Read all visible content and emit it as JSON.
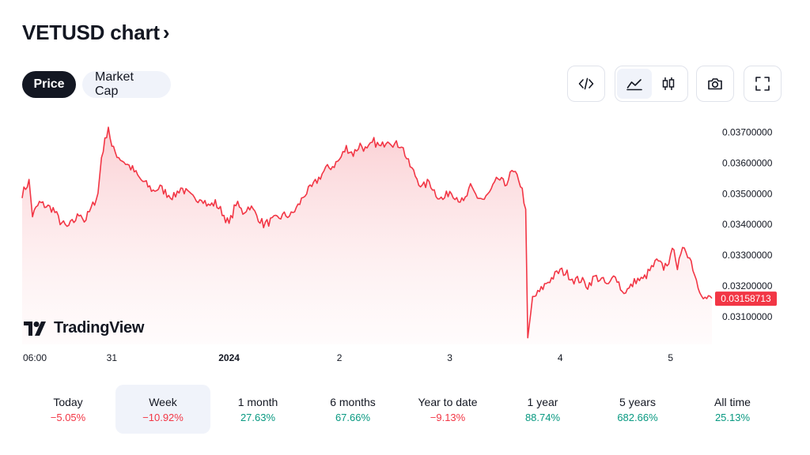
{
  "header": {
    "title": "VETUSD chart",
    "chevron": "›"
  },
  "tabs": [
    {
      "label": "Price",
      "active": true
    },
    {
      "label": "Market Cap",
      "active": false
    }
  ],
  "toolbar": {
    "embed_icon": "code-icon",
    "area_icon": "area-chart-icon",
    "candle_icon": "candlestick-icon",
    "snapshot_icon": "camera-icon",
    "fullscreen_icon": "fullscreen-icon"
  },
  "branding": {
    "logo_text": "TradingView"
  },
  "periods": [
    {
      "label": "Today",
      "value": "−5.05%",
      "trend": "neg",
      "selected": false
    },
    {
      "label": "Week",
      "value": "−10.92%",
      "trend": "neg",
      "selected": true
    },
    {
      "label": "1 month",
      "value": "27.63%",
      "trend": "pos",
      "selected": false
    },
    {
      "label": "6 months",
      "value": "67.66%",
      "trend": "pos",
      "selected": false
    },
    {
      "label": "Year to date",
      "value": "−9.13%",
      "trend": "neg",
      "selected": false
    },
    {
      "label": "1 year",
      "value": "88.74%",
      "trend": "pos",
      "selected": false
    },
    {
      "label": "5 years",
      "value": "682.66%",
      "trend": "pos",
      "selected": false
    },
    {
      "label": "All time",
      "value": "25.13%",
      "trend": "pos",
      "selected": false
    }
  ],
  "colors": {
    "line": "#f23645",
    "area_top": "#f7a9b0",
    "area_bottom": "#fff1f2",
    "label_bg": "#f23645"
  },
  "chart_data": {
    "type": "area",
    "x_ticks": [
      {
        "label": "06:00",
        "t": 0.0,
        "bold": false
      },
      {
        "label": "31",
        "t": 0.13,
        "bold": false
      },
      {
        "label": "2024",
        "t": 0.3,
        "bold": true
      },
      {
        "label": "2",
        "t": 0.46,
        "bold": false
      },
      {
        "label": "3",
        "t": 0.62,
        "bold": false
      },
      {
        "label": "4",
        "t": 0.78,
        "bold": false
      },
      {
        "label": "5",
        "t": 0.94,
        "bold": false
      }
    ],
    "y_ticks": [
      "0.03700000",
      "0.03600000",
      "0.03500000",
      "0.03400000",
      "0.03300000",
      "0.03200000",
      "0.03100000"
    ],
    "ylim": [
      0.0301,
      0.0375
    ],
    "current_price": 0.03158713,
    "current_price_label": "0.03158713",
    "series": [
      {
        "values": [
          [
            0.0,
            0.035
          ],
          [
            0.01,
            0.0354
          ],
          [
            0.015,
            0.0343
          ],
          [
            0.025,
            0.0347
          ],
          [
            0.035,
            0.0346
          ],
          [
            0.045,
            0.0345
          ],
          [
            0.055,
            0.0341
          ],
          [
            0.065,
            0.0339
          ],
          [
            0.075,
            0.0341
          ],
          [
            0.085,
            0.0344
          ],
          [
            0.09,
            0.0341
          ],
          [
            0.1,
            0.0345
          ],
          [
            0.11,
            0.035
          ],
          [
            0.115,
            0.0362
          ],
          [
            0.12,
            0.0367
          ],
          [
            0.125,
            0.0372
          ],
          [
            0.13,
            0.0365
          ],
          [
            0.14,
            0.0362
          ],
          [
            0.15,
            0.036
          ],
          [
            0.16,
            0.0358
          ],
          [
            0.17,
            0.0355
          ],
          [
            0.18,
            0.0353
          ],
          [
            0.19,
            0.0351
          ],
          [
            0.2,
            0.0352
          ],
          [
            0.21,
            0.035
          ],
          [
            0.22,
            0.0349
          ],
          [
            0.23,
            0.0352
          ],
          [
            0.24,
            0.035
          ],
          [
            0.25,
            0.0348
          ],
          [
            0.26,
            0.0349
          ],
          [
            0.27,
            0.0346
          ],
          [
            0.28,
            0.0347
          ],
          [
            0.29,
            0.0344
          ],
          [
            0.3,
            0.034
          ],
          [
            0.31,
            0.0347
          ],
          [
            0.32,
            0.0344
          ],
          [
            0.33,
            0.0346
          ],
          [
            0.34,
            0.0343
          ],
          [
            0.35,
            0.034
          ],
          [
            0.36,
            0.0341
          ],
          [
            0.37,
            0.0342
          ],
          [
            0.38,
            0.0343
          ],
          [
            0.39,
            0.0343
          ],
          [
            0.4,
            0.0346
          ],
          [
            0.41,
            0.035
          ],
          [
            0.42,
            0.0352
          ],
          [
            0.43,
            0.0355
          ],
          [
            0.44,
            0.0358
          ],
          [
            0.45,
            0.0359
          ],
          [
            0.46,
            0.0361
          ],
          [
            0.47,
            0.0365
          ],
          [
            0.48,
            0.0363
          ],
          [
            0.49,
            0.0366
          ],
          [
            0.5,
            0.0364
          ],
          [
            0.51,
            0.0367
          ],
          [
            0.52,
            0.0365
          ],
          [
            0.53,
            0.0368
          ],
          [
            0.54,
            0.0366
          ],
          [
            0.55,
            0.0366
          ],
          [
            0.56,
            0.036
          ],
          [
            0.57,
            0.0356
          ],
          [
            0.58,
            0.0352
          ],
          [
            0.59,
            0.0354
          ],
          [
            0.6,
            0.035
          ],
          [
            0.61,
            0.0348
          ],
          [
            0.62,
            0.0351
          ],
          [
            0.63,
            0.0349
          ],
          [
            0.64,
            0.0347
          ],
          [
            0.65,
            0.0352
          ],
          [
            0.66,
            0.0349
          ],
          [
            0.67,
            0.0348
          ],
          [
            0.68,
            0.0351
          ],
          [
            0.69,
            0.0355
          ],
          [
            0.7,
            0.0353
          ],
          [
            0.71,
            0.0357
          ],
          [
            0.72,
            0.0355
          ],
          [
            0.725,
            0.0351
          ],
          [
            0.73,
            0.0345
          ],
          [
            0.733,
            0.0302
          ],
          [
            0.74,
            0.0316
          ],
          [
            0.75,
            0.0318
          ],
          [
            0.76,
            0.0321
          ],
          [
            0.77,
            0.0323
          ],
          [
            0.78,
            0.0325
          ],
          [
            0.79,
            0.0324
          ],
          [
            0.8,
            0.0322
          ],
          [
            0.81,
            0.0322
          ],
          [
            0.82,
            0.032
          ],
          [
            0.83,
            0.0323
          ],
          [
            0.84,
            0.0322
          ],
          [
            0.85,
            0.032
          ],
          [
            0.86,
            0.0324
          ],
          [
            0.87,
            0.0318
          ],
          [
            0.88,
            0.0319
          ],
          [
            0.89,
            0.0322
          ],
          [
            0.9,
            0.0322
          ],
          [
            0.91,
            0.0325
          ],
          [
            0.92,
            0.0328
          ],
          [
            0.93,
            0.0326
          ],
          [
            0.94,
            0.0329
          ],
          [
            0.945,
            0.0333
          ],
          [
            0.95,
            0.0326
          ],
          [
            0.96,
            0.0333
          ],
          [
            0.97,
            0.0328
          ],
          [
            0.98,
            0.032
          ],
          [
            0.99,
            0.0316
          ],
          [
            1.0,
            0.0316
          ]
        ]
      }
    ]
  }
}
